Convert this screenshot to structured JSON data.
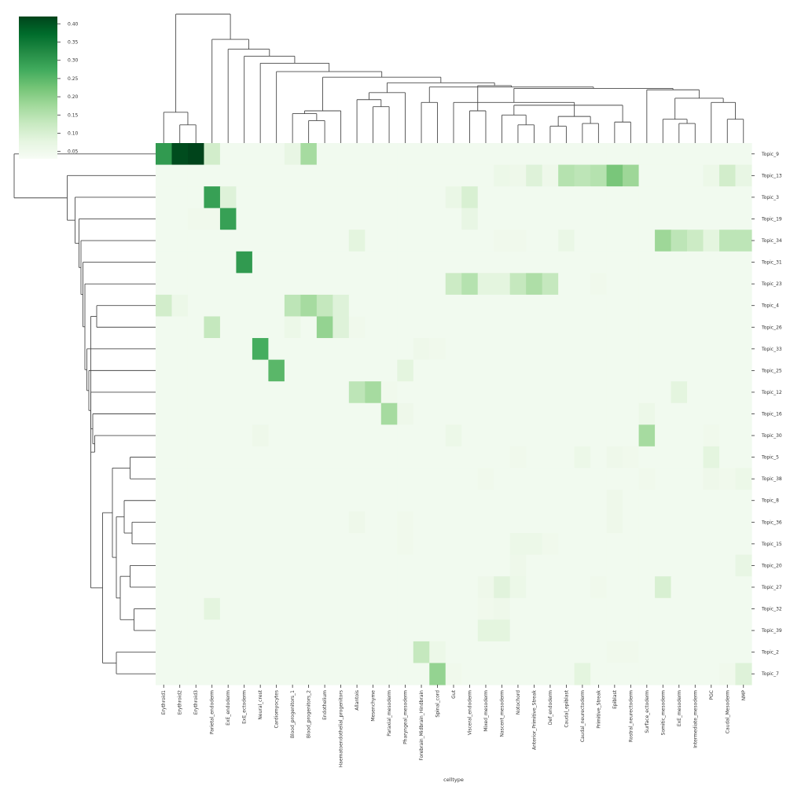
{
  "chart_data": {
    "type": "heatmap",
    "title": "",
    "xlabel": "celltype",
    "ylabel": "",
    "columns": [
      "Erythroid1",
      "Erythroid2",
      "Erythroid3",
      "Parietal_endoderm",
      "ExE_endoderm",
      "ExE_ectoderm",
      "Neural_crest",
      "Cardiomyocytes",
      "Blood_progenitors_1",
      "Blood_progenitors_2",
      "Endothelium",
      "Haematoendothelial_progenitors",
      "Allantois",
      "Mesenchyme",
      "Paraxial_mesoderm",
      "Pharyngeal_mesoderm",
      "Forebrain_Midbrain_Hindbrain",
      "Spinal_cord",
      "Gut",
      "Visceral_endoderm",
      "Mixed_mesoderm",
      "Nascent_mesoderm",
      "Notochord",
      "Anterior_Primitive_Streak",
      "Def_endoderm",
      "Caudal_epiblast",
      "Caudal_neurectoderm",
      "Primitive_Streak",
      "Epiblast",
      "Rostral_neurectoderm",
      "Surface_ectoderm",
      "Somitic_mesoderm",
      "ExE_mesoderm",
      "Intermediate_mesoderm",
      "PGC",
      "Caudal_Mesoderm",
      "NMP"
    ],
    "rows": [
      "Topic_9",
      "Topic_13",
      "Topic_3",
      "Topic_19",
      "Topic_34",
      "Topic_31",
      "Topic_23",
      "Topic_4",
      "Topic_26",
      "Topic_33",
      "Topic_25",
      "Topic_12",
      "Topic_16",
      "Topic_30",
      "Topic_5",
      "Topic_38",
      "Topic_8",
      "Topic_36",
      "Topic_15",
      "Topic_20",
      "Topic_27",
      "Topic_32",
      "Topic_39",
      "Topic_2",
      "Topic_7"
    ],
    "base_value": 0.045,
    "cells": [
      [
        0,
        0,
        0.3
      ],
      [
        0,
        1,
        0.41
      ],
      [
        0,
        2,
        0.42
      ],
      [
        0,
        3,
        0.11
      ],
      [
        0,
        8,
        0.07
      ],
      [
        0,
        9,
        0.17
      ],
      [
        1,
        21,
        0.06
      ],
      [
        1,
        22,
        0.055
      ],
      [
        1,
        23,
        0.09
      ],
      [
        1,
        24,
        0.055
      ],
      [
        1,
        25,
        0.15
      ],
      [
        1,
        26,
        0.14
      ],
      [
        1,
        27,
        0.15
      ],
      [
        1,
        28,
        0.22
      ],
      [
        1,
        29,
        0.18
      ],
      [
        1,
        34,
        0.06
      ],
      [
        1,
        35,
        0.11
      ],
      [
        1,
        36,
        0.07
      ],
      [
        2,
        3,
        0.29
      ],
      [
        2,
        4,
        0.09
      ],
      [
        2,
        18,
        0.065
      ],
      [
        2,
        19,
        0.1
      ],
      [
        3,
        2,
        0.05
      ],
      [
        3,
        3,
        0.05
      ],
      [
        3,
        4,
        0.29
      ],
      [
        3,
        19,
        0.07
      ],
      [
        4,
        12,
        0.08
      ],
      [
        4,
        21,
        0.05
      ],
      [
        4,
        22,
        0.05
      ],
      [
        4,
        25,
        0.065
      ],
      [
        4,
        31,
        0.18
      ],
      [
        4,
        32,
        0.14
      ],
      [
        4,
        33,
        0.12
      ],
      [
        4,
        34,
        0.08
      ],
      [
        4,
        35,
        0.14
      ],
      [
        4,
        36,
        0.14
      ],
      [
        5,
        5,
        0.3
      ],
      [
        6,
        18,
        0.12
      ],
      [
        6,
        19,
        0.15
      ],
      [
        6,
        20,
        0.08
      ],
      [
        6,
        21,
        0.08
      ],
      [
        6,
        22,
        0.13
      ],
      [
        6,
        23,
        0.16
      ],
      [
        6,
        24,
        0.13
      ],
      [
        6,
        27,
        0.05
      ],
      [
        7,
        0,
        0.11
      ],
      [
        7,
        1,
        0.06
      ],
      [
        7,
        8,
        0.14
      ],
      [
        7,
        9,
        0.17
      ],
      [
        7,
        10,
        0.13
      ],
      [
        7,
        11,
        0.09
      ],
      [
        8,
        3,
        0.13
      ],
      [
        8,
        8,
        0.06
      ],
      [
        8,
        10,
        0.19
      ],
      [
        8,
        11,
        0.09
      ],
      [
        8,
        12,
        0.05
      ],
      [
        9,
        6,
        0.27
      ],
      [
        9,
        16,
        0.055
      ],
      [
        9,
        17,
        0.05
      ],
      [
        10,
        7,
        0.25
      ],
      [
        10,
        15,
        0.08
      ],
      [
        11,
        12,
        0.14
      ],
      [
        11,
        13,
        0.17
      ],
      [
        11,
        14,
        0.05
      ],
      [
        11,
        32,
        0.08
      ],
      [
        12,
        14,
        0.17
      ],
      [
        12,
        15,
        0.055
      ],
      [
        12,
        30,
        0.06
      ],
      [
        13,
        6,
        0.055
      ],
      [
        13,
        18,
        0.06
      ],
      [
        13,
        30,
        0.17
      ],
      [
        13,
        34,
        0.05
      ],
      [
        14,
        22,
        0.05
      ],
      [
        14,
        26,
        0.06
      ],
      [
        14,
        28,
        0.055
      ],
      [
        14,
        29,
        0.05
      ],
      [
        14,
        34,
        0.08
      ],
      [
        15,
        20,
        0.05
      ],
      [
        15,
        30,
        0.05
      ],
      [
        15,
        34,
        0.055
      ],
      [
        15,
        35,
        0.05
      ],
      [
        15,
        36,
        0.06
      ],
      [
        16,
        28,
        0.055
      ],
      [
        17,
        12,
        0.055
      ],
      [
        17,
        15,
        0.05
      ],
      [
        17,
        28,
        0.055
      ],
      [
        18,
        15,
        0.05
      ],
      [
        18,
        22,
        0.06
      ],
      [
        18,
        23,
        0.06
      ],
      [
        18,
        24,
        0.05
      ],
      [
        19,
        22,
        0.055
      ],
      [
        19,
        36,
        0.07
      ],
      [
        20,
        20,
        0.055
      ],
      [
        20,
        21,
        0.085
      ],
      [
        20,
        22,
        0.06
      ],
      [
        20,
        27,
        0.05
      ],
      [
        20,
        31,
        0.1
      ],
      [
        21,
        3,
        0.08
      ],
      [
        21,
        20,
        0.05
      ],
      [
        21,
        21,
        0.055
      ],
      [
        22,
        20,
        0.08
      ],
      [
        22,
        21,
        0.08
      ],
      [
        23,
        16,
        0.13
      ],
      [
        23,
        17,
        0.06
      ],
      [
        23,
        28,
        0.05
      ],
      [
        23,
        29,
        0.05
      ],
      [
        24,
        17,
        0.19
      ],
      [
        24,
        18,
        0.05
      ],
      [
        24,
        26,
        0.08
      ],
      [
        24,
        35,
        0.05
      ],
      [
        24,
        36,
        0.09
      ]
    ],
    "colorbar": {
      "colormap": "Greens",
      "vmin": 0.03,
      "vmax": 0.42,
      "ticks": [
        "0.05",
        "0.10",
        "0.15",
        "0.20",
        "0.25",
        "0.30",
        "0.35",
        "0.40"
      ]
    },
    "column_dendrogram": [
      [
        1,
        2,
        0.13
      ],
      [
        0,
        101,
        0.22
      ],
      [
        9,
        10,
        0.16
      ],
      [
        8,
        103,
        0.21
      ],
      [
        11,
        104,
        0.23
      ],
      [
        13,
        14,
        0.26
      ],
      [
        12,
        106,
        0.31
      ],
      [
        15,
        107,
        0.36
      ],
      [
        16,
        17,
        0.29
      ],
      [
        19,
        20,
        0.23
      ],
      [
        22,
        23,
        0.13
      ],
      [
        21,
        111,
        0.2
      ],
      [
        24,
        25,
        0.12
      ],
      [
        26,
        27,
        0.14
      ],
      [
        28,
        29,
        0.15
      ],
      [
        113,
        114,
        0.19
      ],
      [
        115,
        112,
        0.27
      ],
      [
        18,
        116,
        0.29
      ],
      [
        32,
        33,
        0.14
      ],
      [
        31,
        119,
        0.17
      ],
      [
        35,
        36,
        0.17
      ],
      [
        34,
        121,
        0.29
      ],
      [
        120,
        122,
        0.32
      ],
      [
        30,
        123,
        0.38
      ],
      [
        118,
        124,
        0.39
      ],
      [
        109,
        125,
        0.4
      ],
      [
        110,
        126,
        0.41
      ],
      [
        108,
        127,
        0.43
      ],
      [
        105,
        128,
        0.47
      ],
      [
        7,
        129,
        0.51
      ],
      [
        6,
        130,
        0.57
      ],
      [
        5,
        131,
        0.62
      ],
      [
        4,
        132,
        0.67
      ],
      [
        3,
        133,
        0.74
      ],
      [
        102,
        134,
        0.92
      ]
    ],
    "row_dendrogram": [
      [
        14,
        15,
        0.13
      ],
      [
        17,
        18,
        0.12
      ],
      [
        16,
        102,
        0.16
      ],
      [
        19,
        20,
        0.13
      ],
      [
        21,
        22,
        0.11
      ],
      [
        104,
        105,
        0.18
      ],
      [
        103,
        106,
        0.2
      ],
      [
        101,
        107,
        0.22
      ],
      [
        23,
        24,
        0.2
      ],
      [
        108,
        109,
        0.27
      ],
      [
        7,
        8,
        0.3
      ],
      [
        110,
        111,
        0.33
      ],
      [
        13,
        112,
        0.31
      ],
      [
        12,
        113,
        0.32
      ],
      [
        11,
        114,
        0.33
      ],
      [
        10,
        115,
        0.34
      ],
      [
        9,
        116,
        0.35
      ],
      [
        6,
        117,
        0.36
      ],
      [
        5,
        118,
        0.37
      ],
      [
        4,
        119,
        0.38
      ],
      [
        3,
        120,
        0.39
      ],
      [
        2,
        121,
        0.41
      ],
      [
        1,
        122,
        0.45
      ],
      [
        0,
        123,
        0.72
      ]
    ]
  }
}
